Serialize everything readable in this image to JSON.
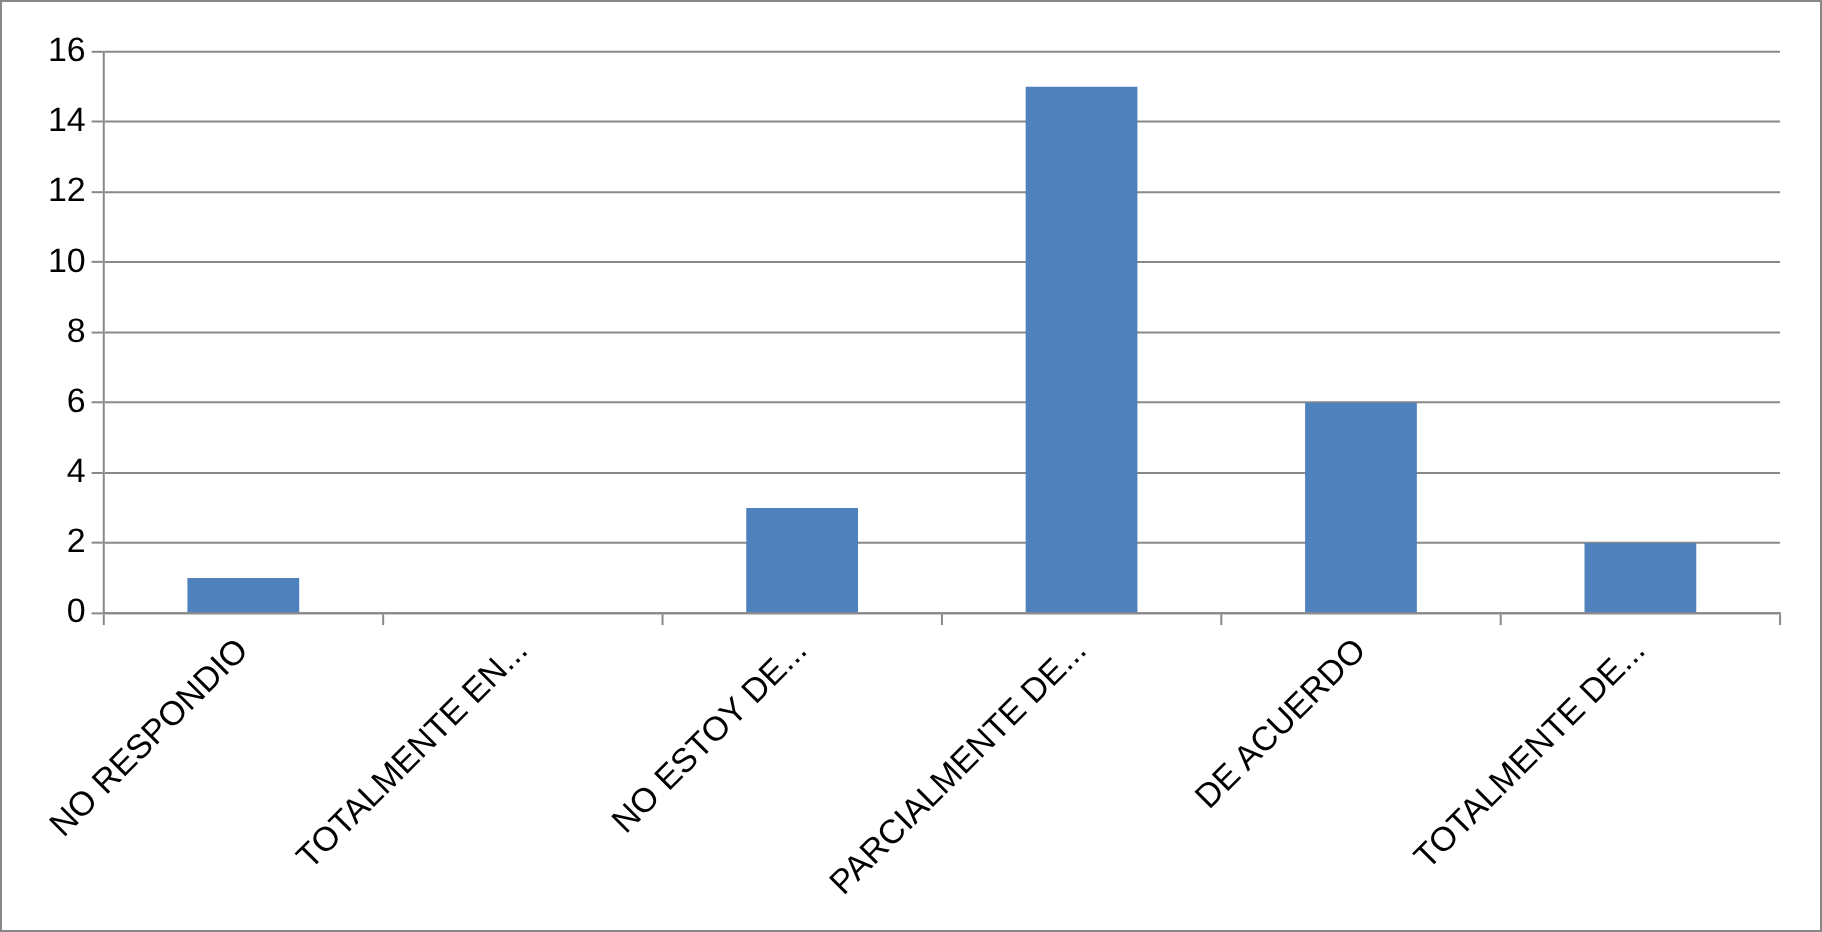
{
  "chart_data": {
    "type": "bar",
    "categories": [
      "NO RESPONDIO",
      "TOTALMENTE EN...",
      "NO ESTOY DE...",
      "PARCIALMENTE DE...",
      "DE ACUERDO",
      "TOTALMENTE DE..."
    ],
    "values": [
      1,
      0,
      3,
      15,
      6,
      2
    ],
    "color": "#4f81bd",
    "ylim": [
      0,
      16
    ],
    "yticks": [
      0,
      2,
      4,
      6,
      8,
      10,
      12,
      14,
      16
    ],
    "grid": "y",
    "legend": false
  }
}
